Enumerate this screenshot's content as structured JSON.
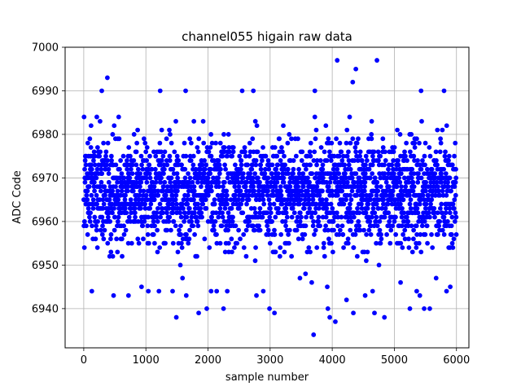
{
  "chart_data": {
    "type": "scatter",
    "title": "channel055 higain raw data",
    "xlabel": "sample number",
    "ylabel": "ADC Code",
    "xlim": [
      -300,
      6200
    ],
    "ylim": [
      6931,
      7000
    ],
    "x_ticks": [
      0,
      1000,
      2000,
      3000,
      4000,
      5000,
      6000
    ],
    "y_ticks": [
      6940,
      6950,
      6960,
      6970,
      6980,
      6990,
      7000
    ],
    "grid": true,
    "marker_color": "#0000ff",
    "series": [
      {
        "points": [
          [
            4080,
            6997
          ],
          [
            4720,
            6997
          ],
          [
            380,
            6993
          ],
          [
            4380,
            6995
          ],
          [
            4330,
            6992
          ],
          [
            290,
            6990
          ],
          [
            1230,
            6990
          ],
          [
            1640,
            6990
          ],
          [
            2550,
            6990
          ],
          [
            2730,
            6990
          ],
          [
            3720,
            6990
          ],
          [
            5430,
            6990
          ],
          [
            5800,
            6990
          ],
          [
            3700,
            6934
          ],
          [
            4050,
            6937
          ],
          [
            3960,
            6938
          ],
          [
            1490,
            6938
          ],
          [
            4840,
            6938
          ],
          [
            3930,
            6940
          ],
          [
            2990,
            6940
          ],
          [
            2250,
            6940
          ],
          [
            1980,
            6940
          ],
          [
            5250,
            6940
          ],
          [
            5480,
            6940
          ],
          [
            5570,
            6940
          ],
          [
            1850,
            6939
          ],
          [
            4340,
            6939
          ],
          [
            4680,
            6939
          ],
          [
            3070,
            6939
          ],
          [
            5900,
            6945
          ],
          [
            5840,
            6944
          ],
          [
            3920,
            6945
          ],
          [
            4650,
            6944
          ],
          [
            2140,
            6944
          ],
          [
            2310,
            6944
          ],
          [
            2890,
            6944
          ],
          [
            130,
            6944
          ],
          [
            720,
            6943
          ],
          [
            930,
            6945
          ],
          [
            1040,
            6944
          ],
          [
            1210,
            6944
          ],
          [
            1430,
            6944
          ],
          [
            2050,
            6944
          ],
          [
            480,
            6943
          ],
          [
            1650,
            6943
          ],
          [
            1590,
            6947
          ],
          [
            4530,
            6943
          ],
          [
            5360,
            6944
          ],
          [
            5410,
            6943
          ],
          [
            5100,
            6946
          ],
          [
            3570,
            6948
          ],
          [
            3480,
            6947
          ],
          [
            3670,
            6946
          ],
          [
            4230,
            6942
          ],
          [
            2780,
            6943
          ]
        ]
      }
    ]
  }
}
